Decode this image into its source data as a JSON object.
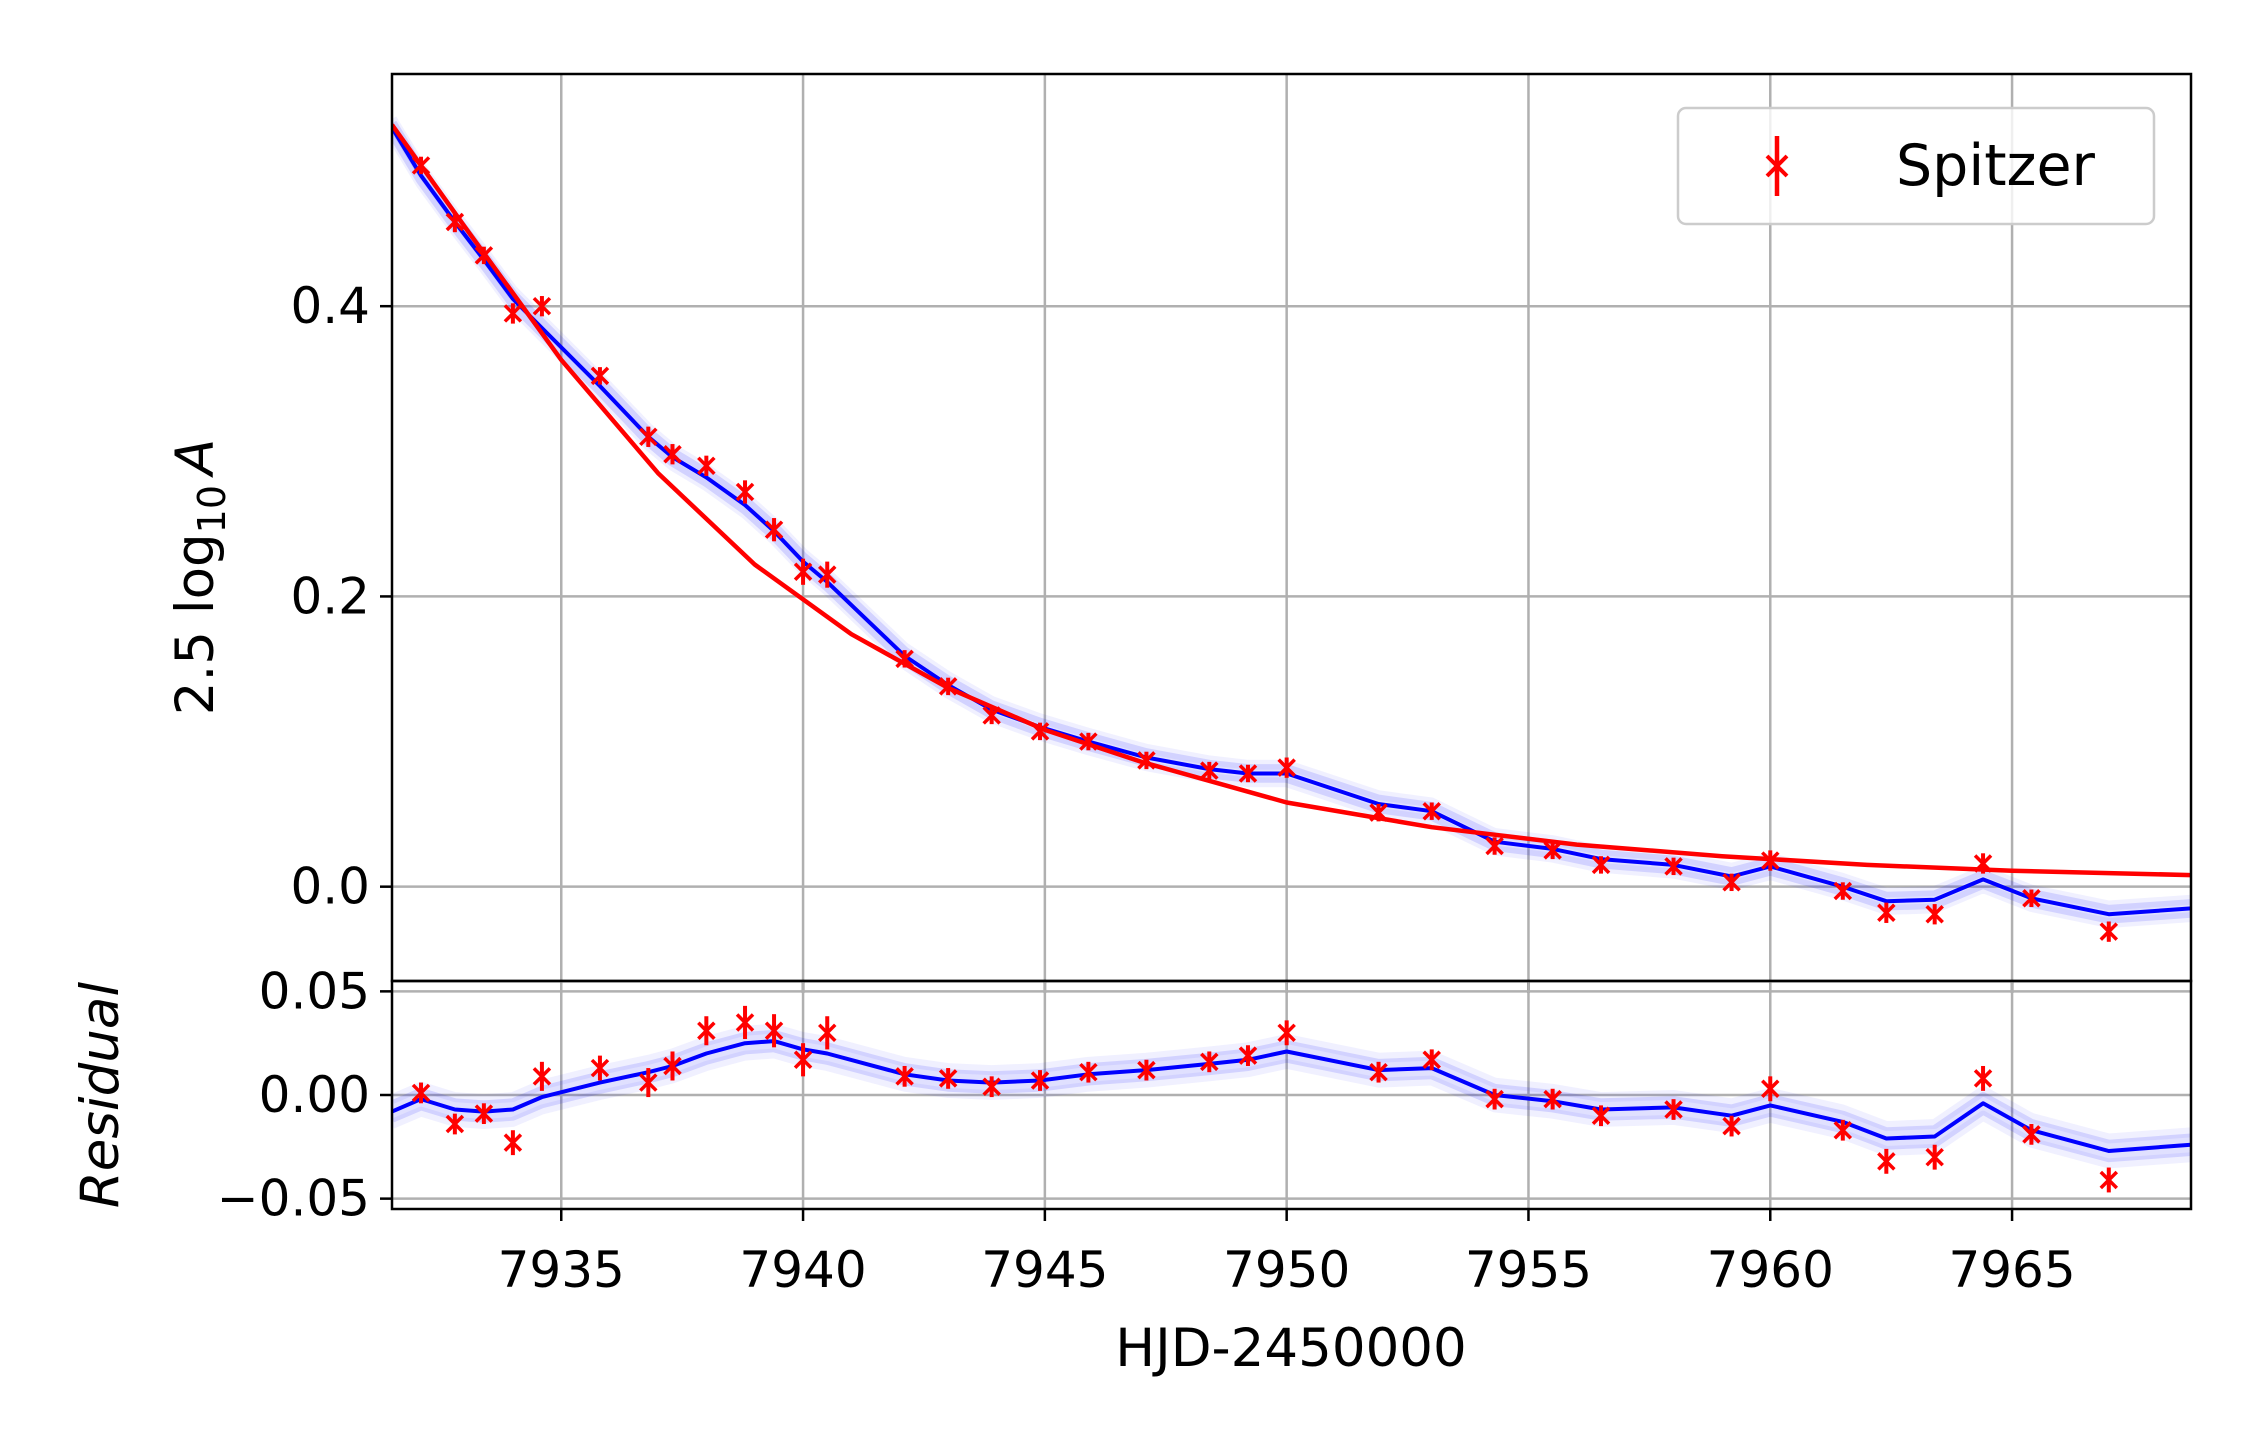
{
  "chart_data": [
    {
      "type": "line",
      "panel": "top",
      "title": "",
      "xlabel": "",
      "ylabel_parts": {
        "prefix": "2.5 log",
        "subscript": "10",
        "variable": "A"
      },
      "xlim": [
        7931.5,
        7968.7
      ],
      "ylim": [
        -0.065,
        0.56
      ],
      "x_ticks": [
        7935,
        7940,
        7945,
        7950,
        7955,
        7960,
        7965
      ],
      "y_ticks": [
        {
          "value": 0.0,
          "label": "0.0"
        },
        {
          "value": 0.2,
          "label": "0.2"
        },
        {
          "value": 0.4,
          "label": "0.4"
        }
      ],
      "grid": true,
      "legend": {
        "position": "top-right",
        "entries": [
          {
            "label": "Spitzer",
            "color": "#ff0000",
            "marker": "x with error bar"
          }
        ]
      },
      "series": [
        {
          "name": "Spitzer",
          "kind": "scatter-errorbar",
          "color": "#ff0000",
          "x": [
            7932.1,
            7932.8,
            7933.4,
            7934.0,
            7934.6,
            7935.8,
            7936.8,
            7937.3,
            7938.0,
            7938.8,
            7939.4,
            7940.0,
            7940.5,
            7942.1,
            7943.0,
            7943.9,
            7944.9,
            7945.9,
            7947.1,
            7948.4,
            7949.2,
            7950.0,
            7951.9,
            7953.0,
            7954.3,
            7955.5,
            7956.5,
            7958.0,
            7959.2,
            7960.0,
            7961.5,
            7962.4,
            7963.4,
            7964.4,
            7965.4,
            7967.0
          ],
          "y": [
            0.497,
            0.458,
            0.435,
            0.395,
            0.4,
            0.352,
            0.31,
            0.298,
            0.29,
            0.272,
            0.246,
            0.217,
            0.215,
            0.157,
            0.138,
            0.118,
            0.107,
            0.1,
            0.087,
            0.08,
            0.078,
            0.082,
            0.051,
            0.052,
            0.028,
            0.025,
            0.015,
            0.014,
            0.003,
            0.018,
            -0.003,
            -0.018,
            -0.019,
            0.016,
            -0.008,
            -0.031
          ],
          "yerr": [
            0.006,
            0.007,
            0.006,
            0.007,
            0.007,
            0.006,
            0.007,
            0.007,
            0.007,
            0.008,
            0.008,
            0.009,
            0.009,
            0.006,
            0.006,
            0.006,
            0.006,
            0.006,
            0.006,
            0.006,
            0.006,
            0.007,
            0.006,
            0.006,
            0.006,
            0.006,
            0.006,
            0.006,
            0.006,
            0.007,
            0.006,
            0.007,
            0.007,
            0.007,
            0.006,
            0.007
          ]
        },
        {
          "name": "",
          "kind": "line",
          "color": "#0000ff",
          "x": [
            7931.5,
            7932.1,
            7932.8,
            7933.4,
            7934.0,
            7934.6,
            7935.8,
            7936.8,
            7937.3,
            7938.0,
            7938.8,
            7939.4,
            7940.0,
            7940.5,
            7942.1,
            7943.0,
            7943.9,
            7944.9,
            7945.9,
            7947.1,
            7948.4,
            7949.2,
            7950.0,
            7951.9,
            7953.0,
            7954.3,
            7955.5,
            7956.5,
            7958.0,
            7959.2,
            7960.0,
            7961.5,
            7962.4,
            7963.4,
            7964.4,
            7965.4,
            7967.0,
            7968.7
          ],
          "y": [
            0.523,
            0.49,
            0.458,
            0.432,
            0.405,
            0.385,
            0.345,
            0.31,
            0.296,
            0.282,
            0.263,
            0.245,
            0.224,
            0.21,
            0.159,
            0.139,
            0.122,
            0.11,
            0.1,
            0.089,
            0.081,
            0.078,
            0.078,
            0.057,
            0.052,
            0.031,
            0.026,
            0.019,
            0.015,
            0.007,
            0.014,
            0.0,
            -0.01,
            -0.009,
            0.005,
            -0.008,
            -0.019,
            -0.015
          ]
        },
        {
          "name": "",
          "kind": "line",
          "color": "#ff0000",
          "x": [
            7931.5,
            7933.0,
            7935.0,
            7937.0,
            7939.0,
            7941.0,
            7943.0,
            7945.0,
            7947.0,
            7950.0,
            7953.0,
            7956.0,
            7959.0,
            7962.0,
            7965.0,
            7968.7
          ],
          "y": [
            0.525,
            0.455,
            0.363,
            0.285,
            0.222,
            0.174,
            0.137,
            0.108,
            0.086,
            0.058,
            0.041,
            0.029,
            0.021,
            0.015,
            0.011,
            0.008
          ]
        }
      ]
    },
    {
      "type": "line",
      "panel": "bottom",
      "title": "",
      "xlabel": "HJD-2450000",
      "ylabel": "Residual",
      "xlim": [
        7931.5,
        7968.7
      ],
      "ylim": [
        -0.055,
        0.055
      ],
      "x_ticks": [
        {
          "value": 7935,
          "label": "7935"
        },
        {
          "value": 7940,
          "label": "7940"
        },
        {
          "value": 7945,
          "label": "7945"
        },
        {
          "value": 7950,
          "label": "7950"
        },
        {
          "value": 7955,
          "label": "7955"
        },
        {
          "value": 7960,
          "label": "7960"
        },
        {
          "value": 7965,
          "label": "7965"
        }
      ],
      "y_ticks": [
        {
          "value": -0.05,
          "label": "−0.05"
        },
        {
          "value": 0.0,
          "label": "0.00"
        },
        {
          "value": 0.05,
          "label": "0.05"
        }
      ],
      "grid": true,
      "series": [
        {
          "name": "Spitzer",
          "kind": "scatter-errorbar",
          "color": "#ff0000",
          "x": [
            7932.1,
            7932.8,
            7933.4,
            7934.0,
            7934.6,
            7935.8,
            7936.8,
            7937.3,
            7938.0,
            7938.8,
            7939.4,
            7940.0,
            7940.5,
            7942.1,
            7943.0,
            7943.9,
            7944.9,
            7945.9,
            7947.1,
            7948.4,
            7949.2,
            7950.0,
            7951.9,
            7953.0,
            7954.3,
            7955.5,
            7956.5,
            7958.0,
            7959.2,
            7960.0,
            7961.5,
            7962.4,
            7963.4,
            7964.4,
            7965.4,
            7967.0
          ],
          "y": [
            0.001,
            -0.014,
            -0.009,
            -0.023,
            0.009,
            0.013,
            0.006,
            0.014,
            0.031,
            0.035,
            0.031,
            0.017,
            0.03,
            0.009,
            0.008,
            0.004,
            0.007,
            0.011,
            0.012,
            0.016,
            0.019,
            0.03,
            0.011,
            0.017,
            -0.002,
            -0.002,
            -0.01,
            -0.007,
            -0.015,
            0.003,
            -0.017,
            -0.032,
            -0.03,
            0.008,
            -0.019,
            -0.041
          ],
          "yerr": [
            0.005,
            0.005,
            0.005,
            0.006,
            0.007,
            0.006,
            0.007,
            0.007,
            0.007,
            0.008,
            0.008,
            0.008,
            0.008,
            0.005,
            0.005,
            0.005,
            0.005,
            0.005,
            0.005,
            0.005,
            0.005,
            0.006,
            0.005,
            0.005,
            0.005,
            0.005,
            0.005,
            0.005,
            0.005,
            0.006,
            0.005,
            0.006,
            0.006,
            0.006,
            0.005,
            0.006
          ]
        },
        {
          "name": "",
          "kind": "line",
          "color": "#0000ff",
          "x": [
            7931.5,
            7932.1,
            7932.8,
            7933.4,
            7934.0,
            7934.6,
            7935.8,
            7936.8,
            7937.3,
            7938.0,
            7938.8,
            7939.4,
            7940.0,
            7940.5,
            7942.1,
            7943.0,
            7943.9,
            7944.9,
            7945.9,
            7947.1,
            7948.4,
            7949.2,
            7950.0,
            7951.9,
            7953.0,
            7954.3,
            7955.5,
            7956.5,
            7958.0,
            7959.2,
            7960.0,
            7961.5,
            7962.4,
            7963.4,
            7964.4,
            7965.4,
            7967.0,
            7968.7
          ],
          "y": [
            -0.008,
            -0.002,
            -0.007,
            -0.008,
            -0.007,
            -0.001,
            0.006,
            0.011,
            0.014,
            0.02,
            0.025,
            0.026,
            0.022,
            0.02,
            0.01,
            0.007,
            0.006,
            0.007,
            0.01,
            0.012,
            0.015,
            0.017,
            0.021,
            0.012,
            0.013,
            0.0,
            -0.003,
            -0.007,
            -0.006,
            -0.01,
            -0.005,
            -0.013,
            -0.021,
            -0.02,
            -0.004,
            -0.017,
            -0.027,
            -0.024
          ]
        }
      ]
    }
  ]
}
